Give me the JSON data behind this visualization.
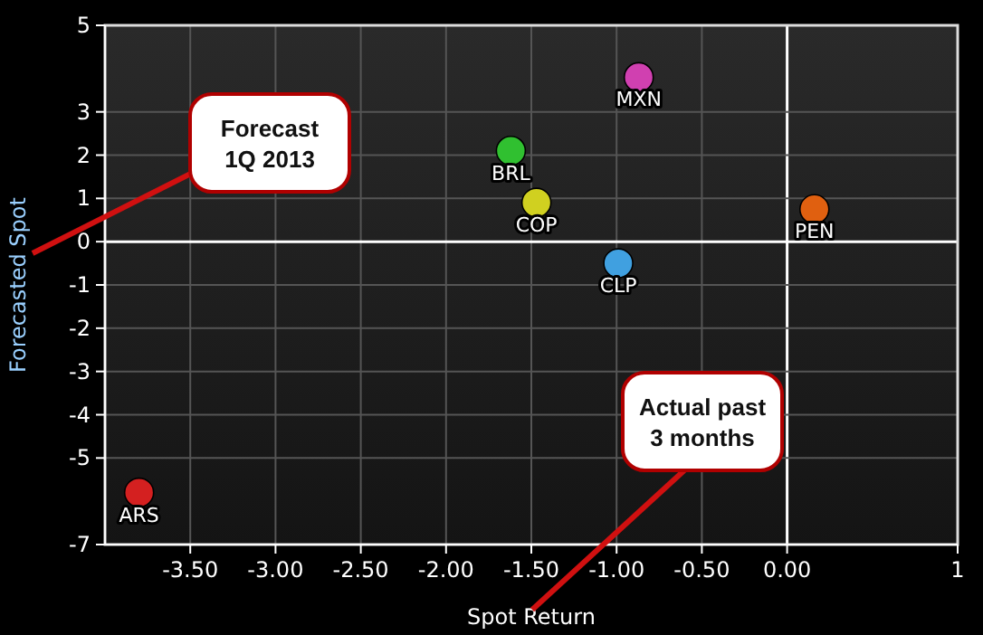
{
  "chart_data": {
    "type": "scatter",
    "xlabel": "Spot Return",
    "ylabel": "Forecasted Spot",
    "xlim": [
      -4,
      1
    ],
    "xticks": [
      {
        "value": -3.5,
        "label": "-3.50"
      },
      {
        "value": -3,
        "label": "-3.00"
      },
      {
        "value": -2.5,
        "label": "-2.50"
      },
      {
        "value": -2,
        "label": "-2.00"
      },
      {
        "value": -1.5,
        "label": "-1.50"
      },
      {
        "value": -1,
        "label": "-1.00"
      },
      {
        "value": -0.5,
        "label": "-0.50"
      },
      {
        "value": 0,
        "label": "0.00"
      },
      1
    ],
    "ylim": [
      -7,
      5
    ],
    "yticks": [
      -7,
      -5,
      -4,
      -3,
      -2,
      -1,
      0,
      1,
      2,
      3,
      5
    ],
    "grid": true,
    "legend": false,
    "marker": "circle",
    "series": [
      {
        "name": "ARS",
        "color": "#d42020",
        "x": [
          -3.8
        ],
        "values": [
          -5.8
        ]
      },
      {
        "name": "MXN",
        "color": "#d040b0",
        "x": [
          -0.87
        ],
        "values": [
          3.8
        ]
      },
      {
        "name": "BRL",
        "color": "#30c030",
        "x": [
          -1.62
        ],
        "values": [
          2.1
        ]
      },
      {
        "name": "COP",
        "color": "#d0d020",
        "x": [
          -1.47
        ],
        "values": [
          0.9
        ]
      },
      {
        "name": "CLP",
        "color": "#40a0e0",
        "x": [
          -0.99
        ],
        "values": [
          -0.5
        ]
      },
      {
        "name": "PEN",
        "color": "#e06010",
        "x": [
          0.16
        ],
        "values": [
          0.75
        ]
      }
    ],
    "annotations": [
      "Forecast\n1Q 2013",
      "Actual past\n3 months"
    ]
  }
}
